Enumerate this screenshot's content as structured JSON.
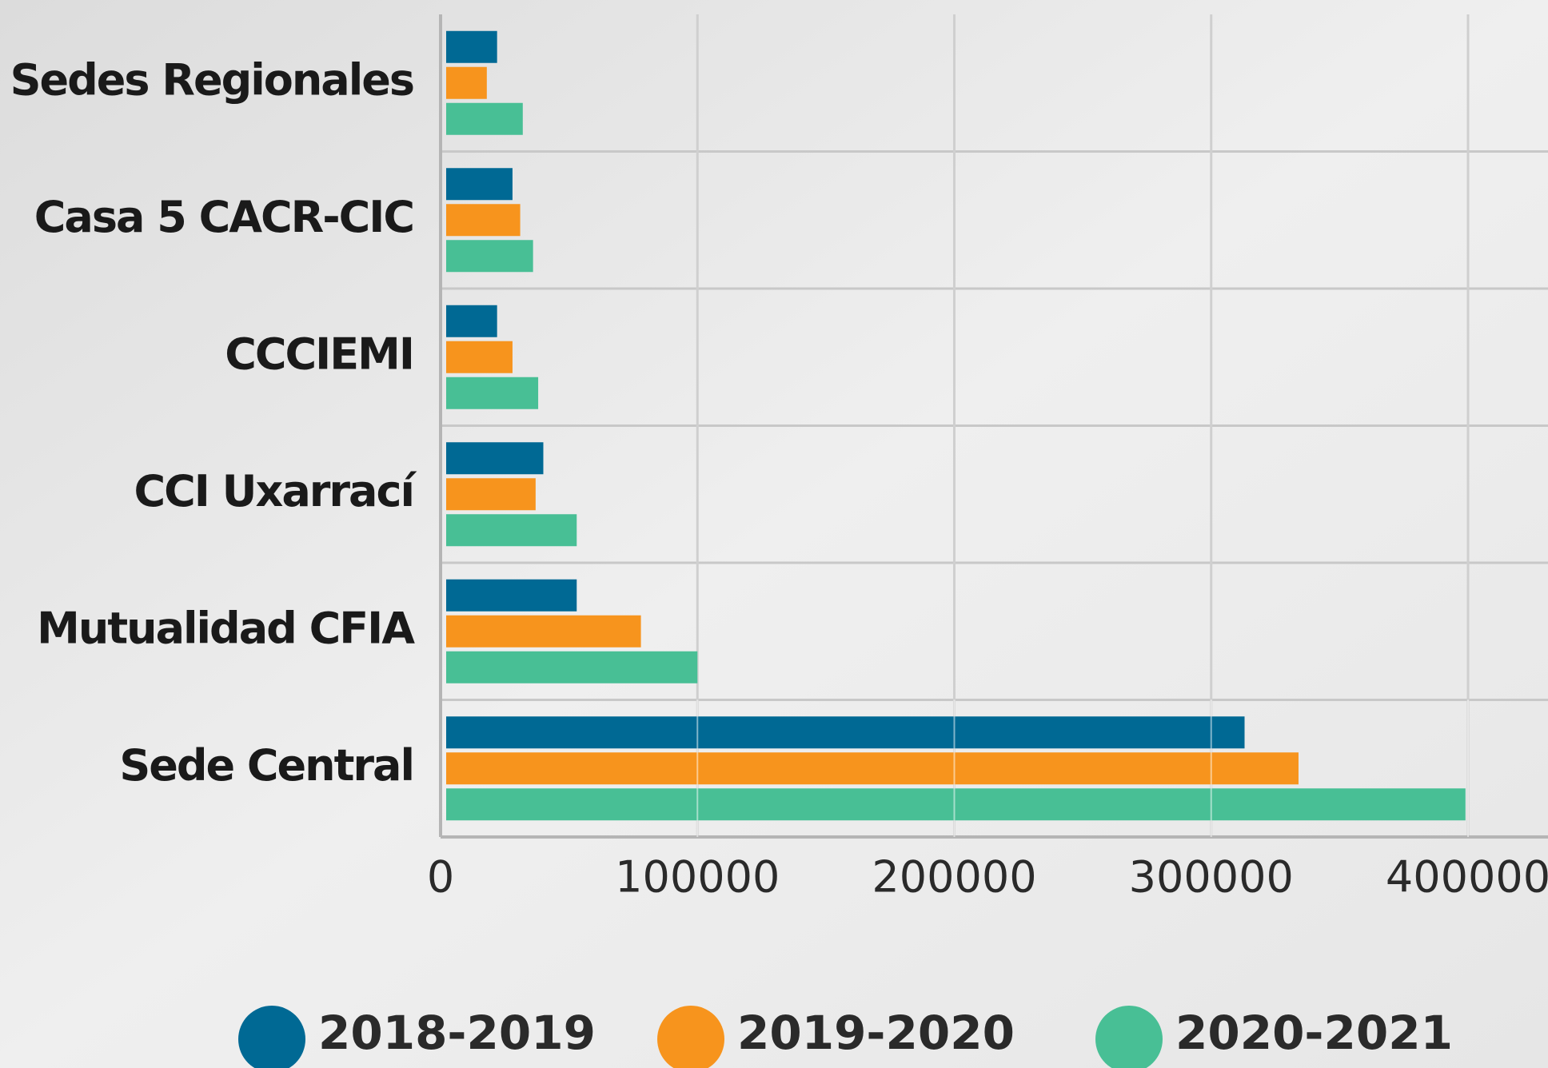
{
  "chart_data": {
    "type": "barh",
    "categories": [
      "Sedes Regionales",
      "Casa 5 CACR-CIC",
      "CCCIEMI",
      "CCI Uxarrací",
      "Mutualidad CFIA",
      "Sede Central"
    ],
    "series": [
      {
        "name": "2018-2019",
        "color": "#006994",
        "values": [
          22000,
          28000,
          22000,
          40000,
          53000,
          313000
        ]
      },
      {
        "name": "2019-2020",
        "color": "#f7941d",
        "values": [
          18000,
          31000,
          28000,
          37000,
          78000,
          334000
        ]
      },
      {
        "name": "2020-2021",
        "color": "#48bf95",
        "values": [
          32000,
          36000,
          38000,
          53000,
          100000,
          399000
        ]
      }
    ],
    "xlim": [
      0,
      400000
    ],
    "xticks": [
      0,
      100000,
      200000,
      300000,
      400000
    ],
    "grid": true
  }
}
